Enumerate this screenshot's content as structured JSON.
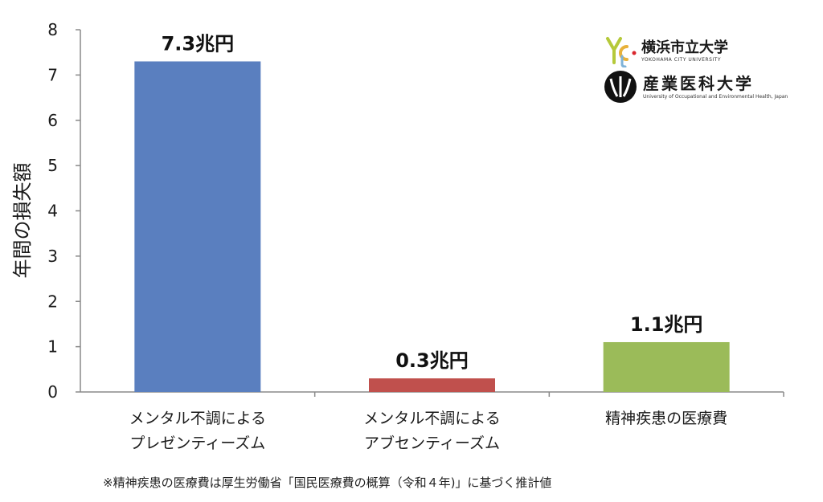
{
  "chart_data": {
    "type": "bar",
    "categories": [
      [
        "メンタル不調による",
        "プレゼンティーズム"
      ],
      [
        "メンタル不調による",
        "アブセンティーズム"
      ],
      [
        "精神疾患の医療費"
      ]
    ],
    "values": [
      7.3,
      0.3,
      1.1
    ],
    "data_labels": [
      "7.3兆円",
      "0.3兆円",
      "1.1兆円"
    ],
    "colors": [
      "#5a7fbf",
      "#c0504d",
      "#9bbb59"
    ],
    "ylabel": "年間の損失額",
    "ylim": [
      0,
      8
    ],
    "yticks": [
      "0",
      "1",
      "2",
      "3",
      "4",
      "5",
      "6",
      "7",
      "8"
    ],
    "grid": false,
    "legend": "none"
  },
  "footnote": "※精神疾患の医療費は厚生労働省「国民医療費の概算（令和４年)」に基づく推計値",
  "logos": {
    "ycu": {
      "name": "横浜市立大学",
      "name_en": "YOKOHAMA CITY UNIVERSITY"
    },
    "uoeh": {
      "name": "産業医科大学",
      "name_en": "University of Occupational and Environmental Health, Japan"
    }
  }
}
